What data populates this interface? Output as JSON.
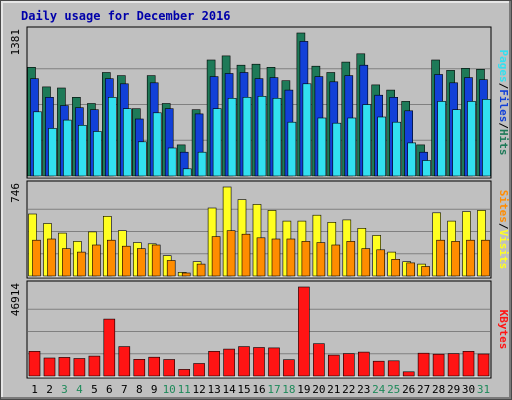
{
  "title": "Daily usage for December 2016",
  "colors": {
    "background": "#c0c0c0",
    "plot": "#c0c0c0",
    "title": "#0000aa",
    "hits": "#1e7a58",
    "files": "#1240d8",
    "pages": "#32e0f0",
    "visits": "#ffff20",
    "sites": "#ff8c00",
    "kbytes": "#ff1414",
    "weekend_label": "#1e8a5a",
    "weekday_label": "#000000"
  },
  "chart_data": [
    {
      "type": "bar",
      "panel": "hits",
      "ylim": [
        0,
        1381
      ],
      "max_label": "1381",
      "legend_position": "right",
      "legend": [
        {
          "label": "Pages",
          "color": "#32e0f0"
        },
        {
          "sep": "/"
        },
        {
          "label": "Files",
          "color": "#1240d8"
        },
        {
          "sep": "/"
        },
        {
          "label": "Hits",
          "color": "#1e7a58"
        }
      ],
      "series": [
        {
          "name": "Hits",
          "color": "#1e7a58",
          "values": [
            1050,
            860,
            850,
            760,
            700,
            1000,
            970,
            650,
            970,
            700,
            300,
            640,
            1120,
            1160,
            1070,
            1080,
            1050,
            920,
            1381,
            1060,
            1000,
            1100,
            1180,
            880,
            830,
            720,
            300,
            1120,
            1020,
            1040,
            1030
          ]
        },
        {
          "name": "Files",
          "color": "#1240d8",
          "values": [
            940,
            760,
            680,
            660,
            640,
            940,
            890,
            550,
            900,
            650,
            230,
            600,
            960,
            990,
            1000,
            940,
            950,
            830,
            1300,
            960,
            910,
            970,
            1070,
            780,
            760,
            630,
            230,
            980,
            900,
            950,
            930
          ]
        },
        {
          "name": "Pages",
          "color": "#32e0f0",
          "values": [
            620,
            460,
            540,
            490,
            430,
            760,
            650,
            330,
            610,
            270,
            70,
            230,
            650,
            750,
            760,
            770,
            750,
            520,
            890,
            560,
            510,
            560,
            690,
            570,
            520,
            320,
            150,
            720,
            640,
            720,
            740
          ]
        }
      ]
    },
    {
      "type": "bar",
      "panel": "visits",
      "ylim": [
        0,
        746
      ],
      "max_label": "746",
      "legend_position": "right",
      "legend": [
        {
          "label": "Sites",
          "color": "#ff8c00"
        },
        {
          "sep": "/"
        },
        {
          "label": "Visits",
          "color": "#ffff20"
        }
      ],
      "series": [
        {
          "name": "Visits",
          "color": "#ffff20",
          "values": [
            520,
            440,
            360,
            290,
            370,
            500,
            380,
            280,
            270,
            170,
            30,
            120,
            570,
            746,
            640,
            600,
            550,
            460,
            460,
            510,
            450,
            470,
            400,
            340,
            200,
            120,
            100,
            530,
            460,
            540,
            550
          ]
        },
        {
          "name": "Sites",
          "color": "#ff8c00",
          "values": [
            300,
            310,
            230,
            200,
            260,
            300,
            250,
            230,
            260,
            130,
            25,
            100,
            330,
            380,
            350,
            320,
            310,
            310,
            290,
            280,
            260,
            290,
            230,
            220,
            140,
            110,
            80,
            300,
            290,
            300,
            300
          ]
        }
      ]
    },
    {
      "type": "bar",
      "panel": "kbytes",
      "ylim": [
        0,
        46914
      ],
      "max_label": "46914",
      "legend_position": "right",
      "legend": [
        {
          "label": "KBytes",
          "color": "#ff1414"
        }
      ],
      "series": [
        {
          "name": "KBytes",
          "color": "#ff1414",
          "values": [
            13000,
            9500,
            9800,
            9200,
            10500,
            30000,
            15500,
            8800,
            9900,
            8700,
            3500,
            6600,
            13000,
            14200,
            15500,
            15000,
            14800,
            8600,
            46914,
            17000,
            11000,
            11800,
            12600,
            7800,
            8000,
            2200,
            12000,
            11500,
            11800,
            13000,
            11600
          ]
        }
      ]
    }
  ],
  "days": [
    "1",
    "2",
    "3",
    "4",
    "5",
    "6",
    "7",
    "8",
    "9",
    "10",
    "11",
    "12",
    "13",
    "14",
    "15",
    "16",
    "17",
    "18",
    "19",
    "20",
    "21",
    "22",
    "23",
    "24",
    "25",
    "26",
    "27",
    "28",
    "29",
    "30",
    "31"
  ],
  "weekend_days": [
    "3",
    "4",
    "10",
    "11",
    "17",
    "18",
    "24",
    "25",
    "31"
  ]
}
